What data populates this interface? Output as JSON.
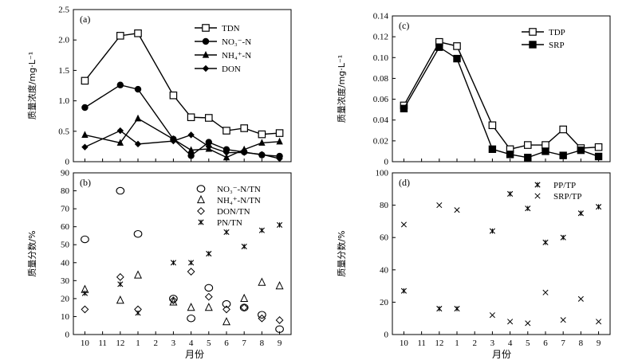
{
  "colors": {
    "ink": "#000000",
    "background": "#ffffff"
  },
  "x_axis_label": "月份",
  "chart_data": [
    {
      "id": "a",
      "panel_label": "(a)",
      "type": "line",
      "ylabel": "质量浓度/mg·L⁻¹",
      "ylim": [
        0,
        2.5
      ],
      "yticks": [
        "0",
        "0.5",
        "1.0",
        "1.5",
        "2.0",
        "2.5"
      ],
      "ytick_values": [
        0,
        0.5,
        1.0,
        1.5,
        2.0,
        2.5
      ],
      "x_ticks": [
        10,
        11,
        12,
        1,
        2,
        3,
        4,
        5,
        6,
        7,
        8,
        9
      ],
      "show_x_ticklabels": false,
      "legend_position": "top-right",
      "series": [
        {
          "name": "TDN",
          "marker": "square-open",
          "x": [
            10,
            12,
            1,
            3,
            4,
            5,
            6,
            7,
            8,
            9
          ],
          "values": [
            1.33,
            2.07,
            2.11,
            1.09,
            0.73,
            0.72,
            0.51,
            0.55,
            0.45,
            0.47
          ]
        },
        {
          "name": "NO₃⁻-N",
          "marker": "circle-filled",
          "x": [
            10,
            12,
            1,
            3,
            4,
            5,
            6,
            7,
            8,
            9
          ],
          "values": [
            0.89,
            1.26,
            1.19,
            0.37,
            0.1,
            0.32,
            0.2,
            0.16,
            0.11,
            0.09
          ]
        },
        {
          "name": "NH₄⁺-N",
          "marker": "triangle-filled",
          "x": [
            10,
            12,
            1,
            3,
            4,
            5,
            6,
            7,
            8,
            9
          ],
          "values": [
            0.44,
            0.31,
            0.71,
            0.37,
            0.19,
            0.21,
            0.07,
            0.2,
            0.31,
            0.33
          ]
        },
        {
          "name": "DON",
          "marker": "diamond-filled",
          "x": [
            10,
            12,
            1,
            3,
            4,
            5,
            6,
            7,
            8,
            9
          ],
          "values": [
            0.24,
            0.51,
            0.29,
            0.34,
            0.44,
            0.25,
            0.15,
            0.15,
            0.12,
            0.05
          ]
        }
      ]
    },
    {
      "id": "b",
      "panel_label": "(b)",
      "type": "scatter",
      "ylabel": "质量分数/%",
      "ylim": [
        0,
        90
      ],
      "yticks": [
        "0",
        "10",
        "20",
        "30",
        "40",
        "50",
        "60",
        "70",
        "80",
        "90"
      ],
      "ytick_values": [
        0,
        10,
        20,
        30,
        40,
        50,
        60,
        70,
        80,
        90
      ],
      "x_ticks": [
        10,
        11,
        12,
        1,
        2,
        3,
        4,
        5,
        6,
        7,
        8,
        9
      ],
      "show_x_ticklabels": true,
      "legend_position": "top-right",
      "series": [
        {
          "name": "NO₃⁻-N/TN",
          "marker": "circle-open",
          "x": [
            10,
            12,
            1,
            3,
            4,
            5,
            6,
            7,
            8,
            9
          ],
          "values": [
            53,
            80,
            56,
            20,
            9,
            26,
            17,
            15,
            11,
            3
          ]
        },
        {
          "name": "NH₄⁺-N/TN",
          "marker": "triangle-open",
          "x": [
            10,
            12,
            1,
            3,
            4,
            5,
            6,
            7,
            8,
            9
          ],
          "values": [
            25,
            19,
            33,
            18,
            15,
            15,
            7,
            20,
            29,
            27
          ]
        },
        {
          "name": "DON/TN",
          "marker": "diamond-open",
          "x": [
            10,
            12,
            1,
            3,
            4,
            5,
            6,
            7,
            8,
            9
          ],
          "values": [
            14,
            32,
            14,
            19,
            35,
            21,
            14,
            15,
            9,
            8
          ]
        },
        {
          "name": "PN/TN",
          "marker": "star",
          "x": [
            10,
            12,
            1,
            3,
            4,
            5,
            6,
            7,
            8,
            9
          ],
          "values": [
            23,
            28,
            12,
            40,
            40,
            45,
            57,
            49,
            58,
            61
          ]
        }
      ]
    },
    {
      "id": "c",
      "panel_label": "(c)",
      "type": "line",
      "ylabel": "质量浓度/mg·L⁻¹",
      "ylim": [
        0,
        0.14
      ],
      "yticks": [
        "0",
        "0.02",
        "0.04",
        "0.06",
        "0.08",
        "0.10",
        "0.12",
        "0.14"
      ],
      "ytick_values": [
        0,
        0.02,
        0.04,
        0.06,
        0.08,
        0.1,
        0.12,
        0.14
      ],
      "x_ticks": [
        10,
        11,
        12,
        1,
        2,
        3,
        4,
        5,
        6,
        7,
        8,
        9
      ],
      "show_x_ticklabels": false,
      "legend_position": "top-right",
      "series": [
        {
          "name": "TDP",
          "marker": "square-open",
          "x": [
            10,
            12,
            1,
            3,
            4,
            5,
            6,
            7,
            8,
            9
          ],
          "values": [
            0.054,
            0.115,
            0.111,
            0.035,
            0.012,
            0.016,
            0.016,
            0.031,
            0.013,
            0.014
          ]
        },
        {
          "name": "SRP",
          "marker": "square-filled",
          "x": [
            10,
            12,
            1,
            3,
            4,
            5,
            6,
            7,
            8,
            9
          ],
          "values": [
            0.051,
            0.11,
            0.099,
            0.012,
            0.007,
            0.004,
            0.01,
            0.006,
            0.011,
            0.005
          ]
        }
      ]
    },
    {
      "id": "d",
      "panel_label": "(d)",
      "type": "scatter",
      "ylabel": "质量分数/%",
      "ylim": [
        0,
        100
      ],
      "yticks": [
        "0",
        "20",
        "40",
        "60",
        "80",
        "100"
      ],
      "ytick_values": [
        0,
        20,
        40,
        60,
        80,
        100
      ],
      "x_ticks": [
        10,
        11,
        12,
        1,
        2,
        3,
        4,
        5,
        6,
        7,
        8,
        9
      ],
      "show_x_ticklabels": true,
      "legend_position": "top-right",
      "series": [
        {
          "name": "PP/TP",
          "marker": "star",
          "x": [
            10,
            12,
            1,
            3,
            4,
            5,
            6,
            7,
            8,
            9
          ],
          "values": [
            27,
            16,
            16,
            64,
            87,
            78,
            57,
            60,
            75,
            79
          ]
        },
        {
          "name": "SRP/TP",
          "marker": "cross",
          "x": [
            10,
            12,
            1,
            3,
            4,
            5,
            6,
            7,
            8,
            9
          ],
          "values": [
            68,
            80,
            77,
            12,
            8,
            7,
            26,
            9,
            22,
            8
          ]
        }
      ]
    }
  ]
}
